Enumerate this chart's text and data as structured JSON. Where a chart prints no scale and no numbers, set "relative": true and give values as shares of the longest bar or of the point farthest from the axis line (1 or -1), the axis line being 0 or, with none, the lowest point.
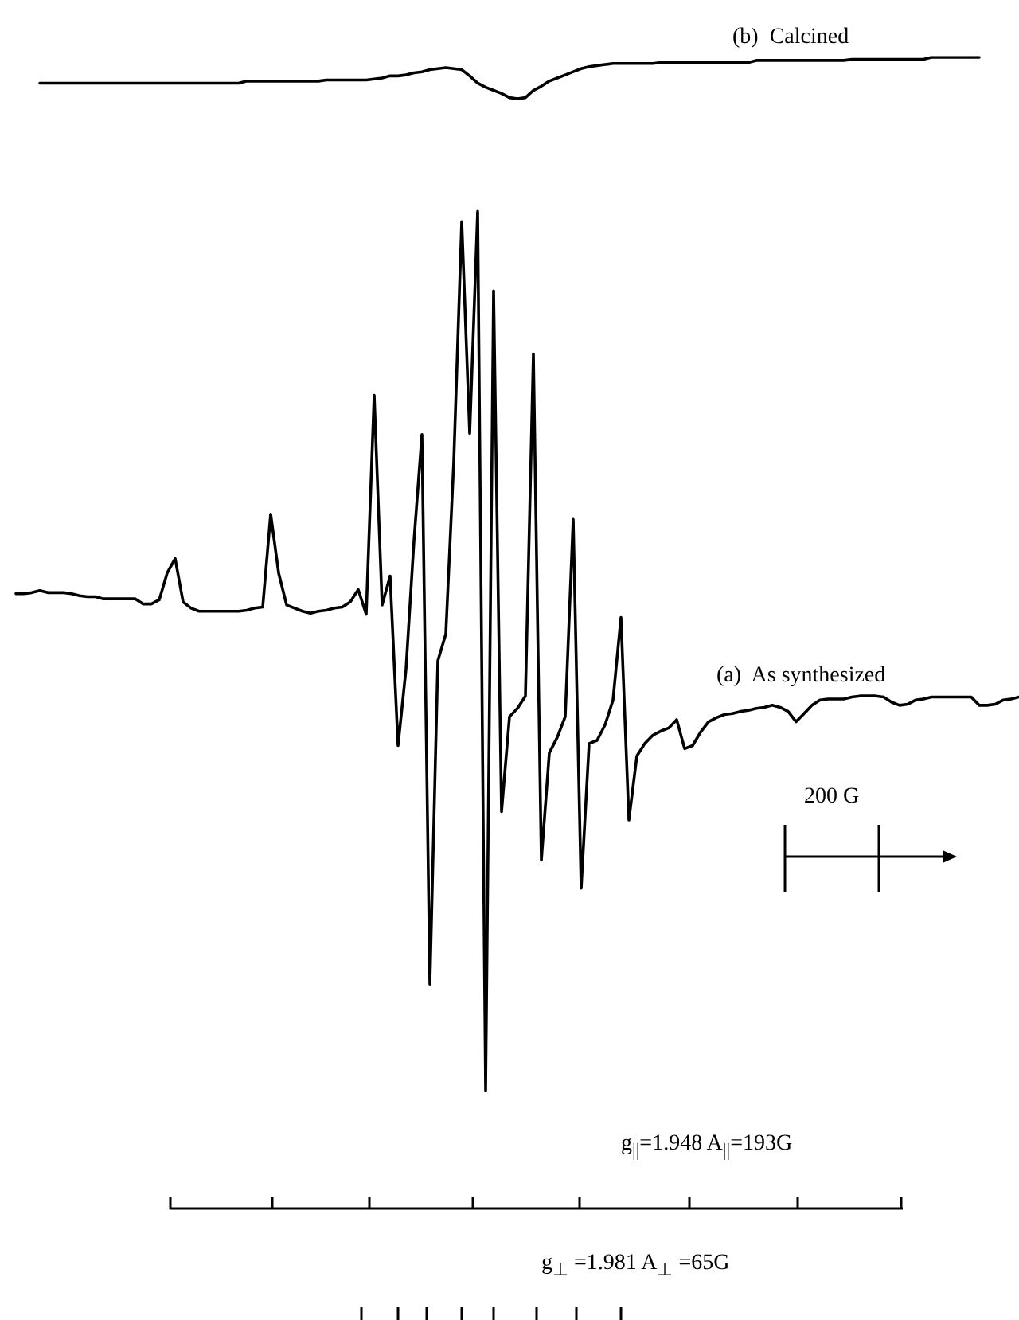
{
  "chart_data": {
    "type": "line",
    "relative": true,
    "grid": false,
    "legend": false,
    "tick_labels": false,
    "line_style": "solid",
    "categories": [
      null,
      null,
      null,
      null,
      null,
      null,
      null,
      null,
      null,
      null,
      null,
      null,
      null,
      null,
      null,
      null,
      null,
      null,
      null,
      null,
      null,
      null,
      null,
      null,
      null,
      null,
      null,
      null,
      null,
      null,
      null,
      null,
      null,
      null,
      null,
      null,
      null,
      null,
      null,
      null,
      null,
      null,
      null,
      null,
      null,
      null,
      null,
      null,
      null,
      null,
      null,
      null,
      null,
      null,
      null,
      null,
      null,
      null,
      null,
      null,
      null,
      null,
      null,
      null,
      null,
      null,
      null,
      null,
      null,
      null,
      null,
      null,
      null,
      null,
      null,
      null,
      null,
      null,
      null,
      null,
      null,
      null,
      null,
      null,
      null,
      null,
      null,
      null,
      null,
      null,
      null,
      null,
      null,
      null,
      null,
      null,
      null,
      null,
      null,
      null,
      null,
      null,
      null,
      null,
      null,
      null,
      null,
      null,
      null,
      null,
      null,
      null,
      null,
      null,
      null,
      null,
      null,
      null,
      null,
      null,
      null,
      null,
      null,
      null,
      null,
      null,
      null
    ],
    "series": [
      {
        "name": "(a)  As synthesized",
        "color": "#000000",
        "values": [
          0.481,
          0.481,
          0.482,
          0.484,
          0.482,
          0.482,
          0.482,
          0.481,
          0.479,
          0.478,
          0.478,
          0.476,
          0.476,
          0.476,
          0.476,
          0.476,
          0.471,
          0.471,
          0.475,
          0.501,
          0.515,
          0.473,
          0.467,
          0.464,
          0.464,
          0.464,
          0.464,
          0.464,
          0.464,
          0.465,
          0.467,
          0.468,
          0.558,
          0.501,
          0.47,
          0.467,
          0.464,
          0.462,
          0.464,
          0.465,
          0.467,
          0.468,
          0.473,
          0.485,
          0.461,
          0.673,
          0.47,
          0.498,
          0.334,
          0.408,
          0.532,
          0.635,
          0.103,
          0.416,
          0.442,
          0.609,
          0.841,
          0.636,
          0.851,
          0,
          0.774,
          0.27,
          0.362,
          0.37,
          0.382,
          0.713,
          0.223,
          0.327,
          0.342,
          0.362,
          0.553,
          0.196,
          0.336,
          0.339,
          0.354,
          0.378,
          0.458,
          0.262,
          0.324,
          0.336,
          0.344,
          0.348,
          0.351,
          0.359,
          0.331,
          0.334,
          0.347,
          0.357,
          0.361,
          0.364,
          0.365,
          0.367,
          0.368,
          0.37,
          0.371,
          0.373,
          0.371,
          0.367,
          0.357,
          0.365,
          0.373,
          0.378,
          0.379,
          0.379,
          0.379,
          0.381,
          0.382,
          0.382,
          0.382,
          0.381,
          0.376,
          0.373,
          0.374,
          0.378,
          0.379,
          0.381,
          0.381,
          0.381,
          0.381,
          0.381,
          0.381,
          0.373,
          0.373,
          0.374,
          0.378,
          0.379,
          0.381
        ]
      },
      {
        "name": "(b)  Calcined",
        "color": "#000000",
        "values": [
          null,
          null,
          null,
          0.975,
          0.975,
          0.975,
          0.975,
          0.975,
          0.975,
          0.975,
          0.975,
          0.975,
          0.975,
          0.975,
          0.975,
          0.975,
          0.975,
          0.975,
          0.975,
          0.975,
          0.975,
          0.975,
          0.975,
          0.975,
          0.975,
          0.975,
          0.975,
          0.975,
          0.975,
          0.977,
          0.977,
          0.977,
          0.977,
          0.977,
          0.977,
          0.977,
          0.977,
          0.977,
          0.977,
          0.978,
          0.978,
          0.978,
          0.978,
          0.978,
          0.978,
          0.979,
          0.98,
          0.982,
          0.982,
          0.983,
          0.985,
          0.986,
          0.988,
          0.989,
          0.99,
          0.989,
          0.988,
          0.982,
          0.975,
          0.971,
          0.968,
          0.965,
          0.961,
          0.96,
          0.961,
          0.968,
          0.972,
          0.977,
          0.98,
          0.983,
          0.986,
          0.989,
          0.991,
          0.992,
          0.993,
          0.994,
          0.994,
          0.994,
          0.994,
          0.994,
          0.994,
          0.995,
          0.995,
          0.995,
          0.995,
          0.995,
          0.995,
          0.995,
          0.995,
          0.995,
          0.995,
          0.995,
          0.995,
          0.997,
          0.997,
          0.997,
          0.997,
          0.997,
          0.997,
          0.997,
          0.997,
          0.997,
          0.997,
          0.997,
          0.997,
          0.998,
          0.998,
          0.998,
          0.998,
          0.998,
          0.998,
          0.998,
          0.998,
          0.998,
          0.998,
          1.0,
          1.0,
          1.0,
          1.0,
          1.0,
          1.0,
          1.0,
          null,
          null,
          null,
          null,
          null
        ]
      }
    ],
    "annotations": [
      "g$_{||}$=1.948 A$_{||}$=193G",
      "g$_{⊥}$ =1.981 A$_{⊥}$ =65G",
      "200 G"
    ]
  }
}
